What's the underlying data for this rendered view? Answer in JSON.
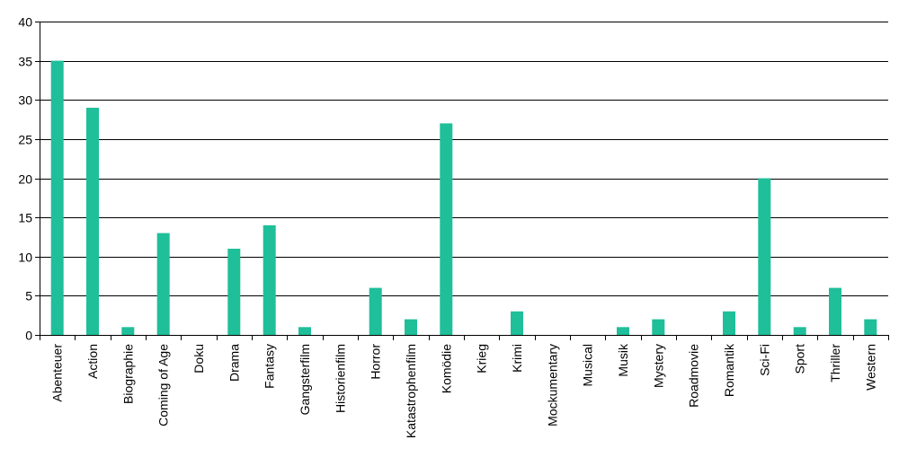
{
  "chart_data": {
    "type": "bar",
    "categories": [
      "Abenteuer",
      "Action",
      "Biographie",
      "Coming of Age",
      "Doku",
      "Drama",
      "Fantasy",
      "Gangsterfilm",
      "Historienfilm",
      "Horror",
      "Katastrophenfilm",
      "Komödie",
      "Krieg",
      "Krimi",
      "Mockumentary",
      "Musical",
      "Musik",
      "Mystery",
      "Roadmovie",
      "Romantik",
      "Sci-Fi",
      "Sport",
      "Thriller",
      "Western"
    ],
    "values": [
      35,
      29,
      1,
      13,
      0,
      11,
      14,
      1,
      0,
      6,
      2,
      27,
      0,
      3,
      0,
      0,
      1,
      2,
      0,
      3,
      20,
      1,
      6,
      2
    ],
    "title": "",
    "xlabel": "",
    "ylabel": "",
    "ylim": [
      0,
      40
    ],
    "yticks": [
      0,
      5,
      10,
      15,
      20,
      25,
      30,
      35,
      40
    ],
    "grid": true,
    "legend": "none",
    "bar_color": "#1fbf9a"
  }
}
